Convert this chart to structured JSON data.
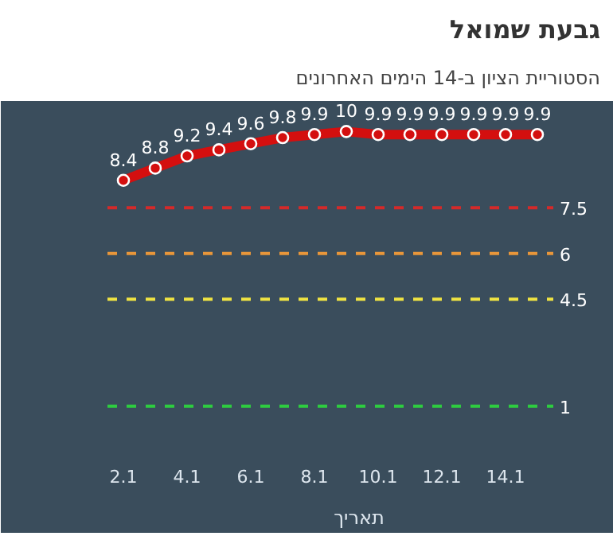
{
  "chart_data": {
    "type": "line",
    "title": "גבעת שמואל",
    "subtitle": "הסטוריית הציון ב-14 הימים האחרונים",
    "xlabel": "תאריך",
    "categories": [
      "2.1",
      null,
      "4.1",
      null,
      "6.1",
      null,
      "8.1",
      null,
      "10.1",
      null,
      "12.1",
      null,
      "14.1",
      null
    ],
    "series": [
      {
        "color": "#d40f0f",
        "values": [
          8.4,
          8.8,
          9.2,
          9.4,
          9.6,
          9.8,
          9.9,
          10,
          9.9,
          9.9,
          9.9,
          9.9,
          9.9,
          9.9
        ]
      }
    ],
    "data_labels": true,
    "marker": "circle",
    "line_style": "solid",
    "ylim": [
      0,
      11
    ],
    "tick_labels": "x",
    "grid": false,
    "ref_lines": [
      {
        "axis": "y",
        "value": 7.5,
        "label": "7.5",
        "color": "#d42a2a",
        "line_style": "dashed"
      },
      {
        "axis": "y",
        "value": 6,
        "label": "6",
        "color": "#e8963a",
        "line_style": "dashed"
      },
      {
        "axis": "y",
        "value": 4.5,
        "label": "4.5",
        "color": "#f0e442",
        "line_style": "dashed"
      },
      {
        "axis": "y",
        "value": 1,
        "label": "1",
        "color": "#2ecc40",
        "line_style": "dashed"
      }
    ]
  }
}
